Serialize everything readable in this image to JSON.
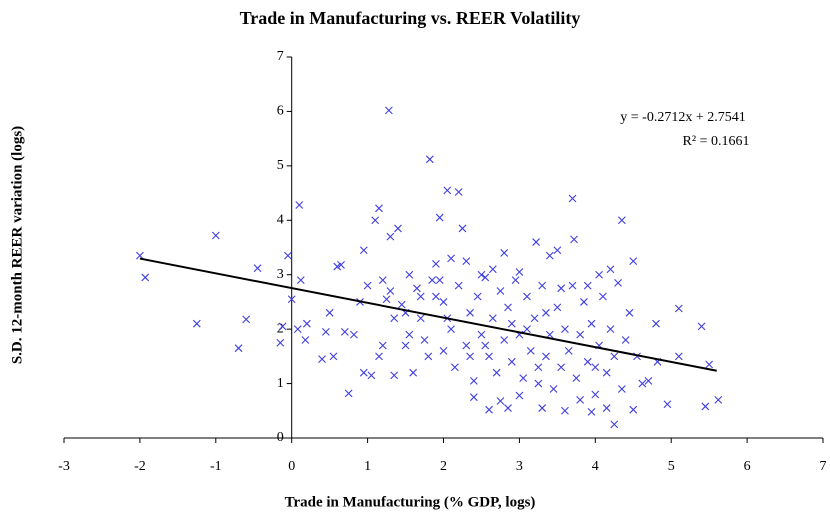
{
  "chart_data": {
    "type": "scatter",
    "title": "Trade in Manufacturing vs. REER Volatility",
    "x_label": "Trade in Manufacturing (% GDP, logs)",
    "y_label": "S.D. 12-month REER variation (logs)",
    "color": "#3f3fe0",
    "x": [
      -2.0,
      -1.93,
      -1.0,
      -1.25,
      -0.7,
      -0.6,
      -0.45,
      -0.15,
      -0.12,
      -0.05,
      0.0,
      0.1,
      0.08,
      0.12,
      0.18,
      0.2,
      0.4,
      0.45,
      0.5,
      0.55,
      0.6,
      0.65,
      0.7,
      0.75,
      0.82,
      0.9,
      0.95,
      1.0,
      1.05,
      1.1,
      1.15,
      1.2,
      1.25,
      1.28,
      1.3,
      1.35,
      1.4,
      1.5,
      1.6,
      1.7,
      1.82,
      1.9,
      1.95,
      2.05,
      2.2,
      2.25,
      3.7,
      3.72,
      4.35,
      4.5,
      4.25,
      5.62,
      5.45,
      5.5,
      5.4,
      5.1,
      4.8,
      4.95,
      5.1,
      4.7,
      4.82,
      4.55,
      4.5,
      4.62,
      3.95,
      3.6,
      2.6,
      2.85,
      2.75,
      3.0,
      3.3,
      3.1,
      3.22,
      3.5,
      3.4,
      2.8,
      2.3,
      2.1,
      1.9,
      1.2,
      1.3,
      1.45,
      1.55,
      1.65,
      1.75,
      1.85,
      2.0,
      2.0,
      2.1,
      2.15,
      2.2,
      2.3,
      2.35,
      2.4,
      2.45,
      2.5,
      2.55,
      2.6,
      2.65,
      2.7,
      2.75,
      2.8,
      2.85,
      2.9,
      2.95,
      3.0,
      3.05,
      3.1,
      3.15,
      3.2,
      3.25,
      3.3,
      3.35,
      3.4,
      3.45,
      3.5,
      3.55,
      3.6,
      3.65,
      3.7,
      3.75,
      3.8,
      3.85,
      3.9,
      3.95,
      4.0,
      4.05,
      4.1,
      4.15,
      4.2,
      4.25,
      4.3,
      4.35,
      4.4,
      4.45,
      4.05,
      4.2,
      3.9,
      2.5,
      2.35,
      2.05,
      1.8,
      1.55,
      1.35,
      1.15,
      0.95,
      2.4,
      3.8,
      4.15,
      3.35,
      2.9,
      3.0,
      2.65,
      3.55,
      4.0,
      3.25,
      2.55,
      1.95,
      1.7,
      1.5
    ],
    "y": [
      3.35,
      2.95,
      3.72,
      2.1,
      1.65,
      2.18,
      3.12,
      1.75,
      2.05,
      3.35,
      2.55,
      4.28,
      2.0,
      2.9,
      1.8,
      2.1,
      1.45,
      1.95,
      2.3,
      1.5,
      3.15,
      3.18,
      1.95,
      0.82,
      1.9,
      2.5,
      3.45,
      2.8,
      1.15,
      4.0,
      4.22,
      1.7,
      2.55,
      6.02,
      3.7,
      1.15,
      3.85,
      2.3,
      1.2,
      2.2,
      5.12,
      2.6,
      4.05,
      4.55,
      4.52,
      3.85,
      4.4,
      3.65,
      4.0,
      3.25,
      0.25,
      0.7,
      0.58,
      1.35,
      2.05,
      2.38,
      2.1,
      0.62,
      1.5,
      1.05,
      1.4,
      1.5,
      0.52,
      1.0,
      0.48,
      0.5,
      0.52,
      0.55,
      0.68,
      0.78,
      0.55,
      2.0,
      3.6,
      3.45,
      3.35,
      3.4,
      3.25,
      3.3,
      3.2,
      2.9,
      2.7,
      2.45,
      3.0,
      2.75,
      1.8,
      2.9,
      2.5,
      1.6,
      2.0,
      1.3,
      2.8,
      1.7,
      2.3,
      1.05,
      2.6,
      1.9,
      2.95,
      1.5,
      2.2,
      1.2,
      2.7,
      1.8,
      2.4,
      1.4,
      2.9,
      1.9,
      1.1,
      2.6,
      1.6,
      2.2,
      1.0,
      2.8,
      1.5,
      1.9,
      0.9,
      2.4,
      1.3,
      2.0,
      1.6,
      2.8,
      1.1,
      1.9,
      2.5,
      1.4,
      2.1,
      0.8,
      1.7,
      2.6,
      1.2,
      2.0,
      1.5,
      2.85,
      0.9,
      1.8,
      2.3,
      3.0,
      3.1,
      2.8,
      3.0,
      1.5,
      2.2,
      1.5,
      1.9,
      2.2,
      1.5,
      1.2,
      0.75,
      0.7,
      0.55,
      2.3,
      2.1,
      3.05,
      3.1,
      2.75,
      1.3,
      1.3,
      1.7,
      2.9,
      2.6,
      1.7
    ],
    "trendline": {
      "slope": -0.2712,
      "intercept": 2.7541,
      "x": [
        -2,
        5.6
      ],
      "color": "#000000"
    },
    "equation": "y = -0.2712x + 2.7541",
    "r_squared": "R² = 0.1661",
    "xlim": [
      -3,
      7
    ],
    "xticks": [
      -3,
      -2,
      -1,
      0,
      1,
      2,
      3,
      4,
      5,
      6,
      7
    ],
    "ylim": [
      0,
      7
    ],
    "yticks": [
      0,
      1,
      2,
      3,
      4,
      5,
      6,
      7
    ]
  }
}
